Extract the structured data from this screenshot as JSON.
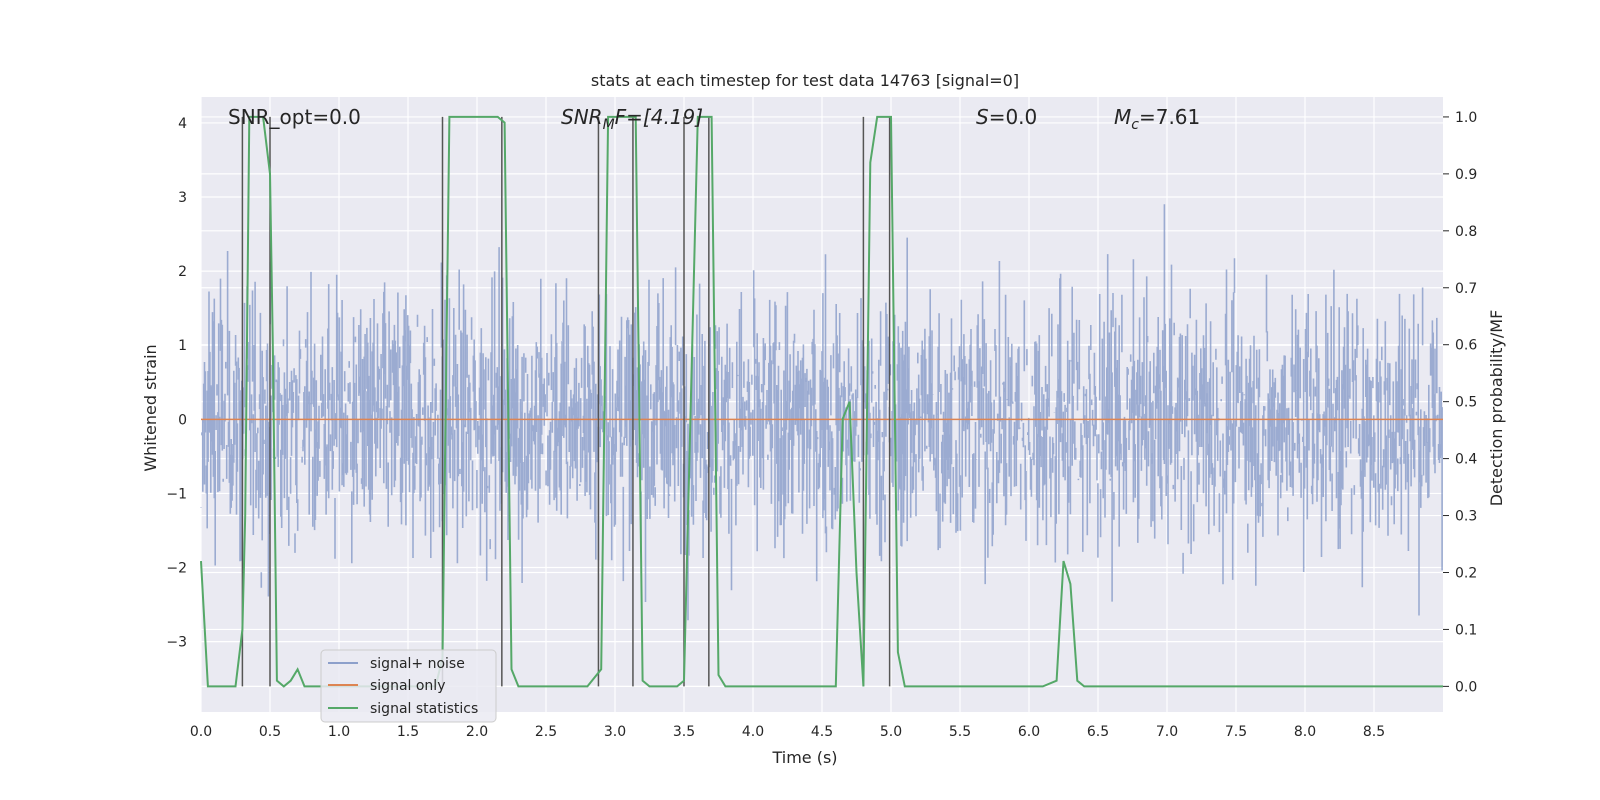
{
  "chart_data": {
    "type": "line",
    "title": "stats at each timestep for test data 14763 [signal=0]",
    "xlabel": "Time (s)",
    "ylabel": "Whitened strain",
    "y2label": "Detection probability/MF",
    "xlim": [
      0.0,
      9.0
    ],
    "ylim": [
      -3.95,
      4.35
    ],
    "y2lim": [
      -0.045,
      1.035
    ],
    "x_ticks": [
      "0.0",
      "0.5",
      "1.0",
      "1.5",
      "2.0",
      "2.5",
      "3.0",
      "3.5",
      "4.0",
      "4.5",
      "5.0",
      "5.5",
      "6.0",
      "6.5",
      "7.0",
      "7.5",
      "8.0",
      "8.5"
    ],
    "y_ticks": [
      "4",
      "3",
      "2",
      "1",
      "0",
      "−1",
      "−2",
      "−3"
    ],
    "y2_ticks": [
      "1.0",
      "0.9",
      "0.8",
      "0.7",
      "0.6",
      "0.5",
      "0.4",
      "0.3",
      "0.2",
      "0.1",
      "0.0"
    ],
    "grid": true,
    "legend_position": "lower-left",
    "annotations": {
      "snr_opt": "SNR_opt=0.0",
      "snr_mf_symbol": "SNR",
      "snr_mf_sub": "M",
      "snr_mf_rest": "F=[4.19]",
      "s_symbol": "S",
      "s_rest": "=0.0",
      "mc_symbol": "M",
      "mc_sub": "c",
      "mc_rest": "=7.61"
    },
    "series": [
      {
        "name": "signal+ noise",
        "color": "#8da0cb",
        "description_values": "dense noise, approx. band between -2 and 2, peaks up to 4 and down to -3.7"
      },
      {
        "name": "signal only",
        "color": "#dd8452",
        "x": [
          0.0,
          9.0
        ],
        "y": [
          0.0,
          0.0
        ]
      },
      {
        "name": "signal statistics",
        "color": "#55a868",
        "axis": "right",
        "x": [
          0.0,
          0.05,
          0.1,
          0.2,
          0.25,
          0.3,
          0.32,
          0.35,
          0.4,
          0.45,
          0.5,
          0.52,
          0.55,
          0.6,
          0.65,
          0.7,
          0.75,
          0.8,
          1.0,
          1.5,
          1.6,
          1.7,
          1.75,
          1.8,
          2.0,
          2.15,
          2.2,
          2.25,
          2.3,
          2.5,
          2.8,
          2.9,
          2.95,
          3.0,
          3.1,
          3.15,
          3.2,
          3.25,
          3.45,
          3.5,
          3.6,
          3.65,
          3.7,
          3.75,
          3.8,
          4.0,
          4.5,
          4.6,
          4.65,
          4.7,
          4.75,
          4.8,
          4.85,
          4.9,
          4.95,
          5.0,
          5.05,
          5.1,
          5.5,
          6.0,
          6.1,
          6.2,
          6.25,
          6.3,
          6.35,
          6.4,
          6.5,
          7.0,
          7.5,
          7.7,
          7.8,
          8.0,
          8.5,
          9.0
        ],
        "y": [
          0.22,
          0.0,
          0.0,
          0.0,
          0.0,
          0.1,
          0.3,
          1.0,
          1.0,
          1.0,
          0.9,
          0.6,
          0.01,
          0.0,
          0.01,
          0.03,
          0.0,
          0.0,
          0.0,
          0.0,
          0.0,
          0.0,
          0.05,
          1.0,
          1.0,
          1.0,
          0.99,
          0.03,
          0.0,
          0.0,
          0.0,
          0.03,
          1.0,
          1.0,
          1.0,
          1.0,
          0.01,
          0.0,
          0.0,
          0.01,
          1.0,
          1.0,
          1.0,
          0.02,
          0.0,
          0.0,
          0.0,
          0.0,
          0.47,
          0.5,
          0.2,
          0.0,
          0.92,
          1.0,
          1.0,
          1.0,
          0.06,
          0.0,
          0.0,
          0.0,
          0.0,
          0.01,
          0.22,
          0.18,
          0.01,
          0.0,
          0.0,
          0.0,
          0.0,
          0.0,
          0.0,
          0.0,
          0.0,
          0.0
        ]
      }
    ],
    "vertical_lines_x": [
      0.3,
      0.5,
      1.75,
      2.18,
      2.88,
      3.13,
      3.5,
      3.68,
      4.8,
      4.99
    ]
  },
  "legend": {
    "items": [
      {
        "label": "signal+ noise",
        "color": "#8da0cb"
      },
      {
        "label": "signal only",
        "color": "#dd8452"
      },
      {
        "label": "signal statistics",
        "color": "#55a868"
      }
    ]
  },
  "colors": {
    "plot_bg": "#eaeaf2",
    "grid": "#ffffff",
    "vline": "#555555"
  }
}
